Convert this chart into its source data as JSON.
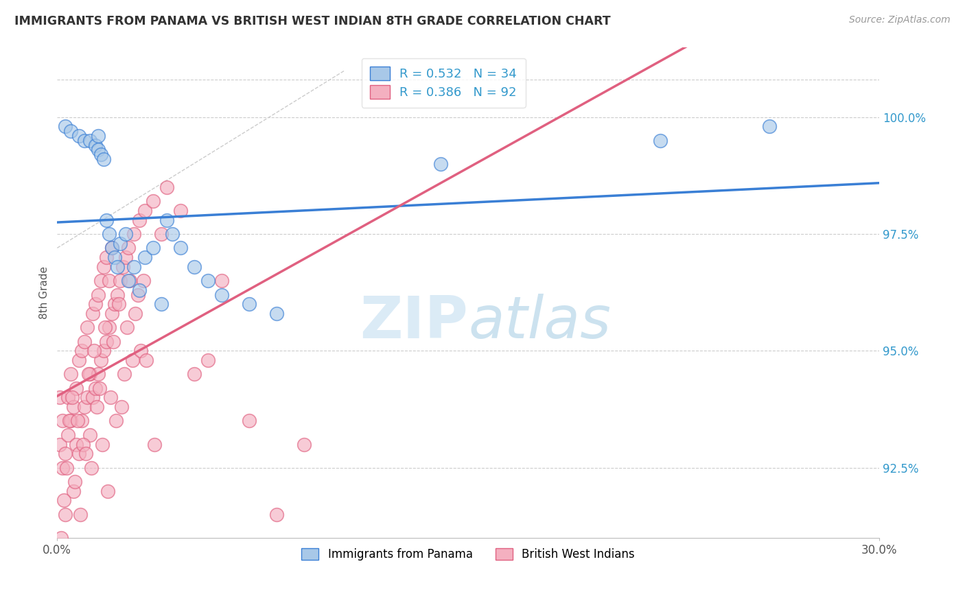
{
  "title": "IMMIGRANTS FROM PANAMA VS BRITISH WEST INDIAN 8TH GRADE CORRELATION CHART",
  "source": "Source: ZipAtlas.com",
  "ylabel_label": "8th Grade",
  "ylabel_ticks": [
    "100.0%",
    "97.5%",
    "95.0%",
    "92.5%"
  ],
  "xlim": [
    0.0,
    30.0
  ],
  "ylim": [
    91.0,
    101.5
  ],
  "ytick_positions": [
    100.0,
    97.5,
    95.0,
    92.5
  ],
  "legend1_label": "R = 0.532   N = 34",
  "legend2_label": "R = 0.386   N = 92",
  "legend_bottom_label1": "Immigrants from Panama",
  "legend_bottom_label2": "British West Indians",
  "color_blue": "#a8c8e8",
  "color_pink": "#f4b0c0",
  "color_blue_line": "#3a7fd5",
  "color_pink_line": "#e06080",
  "color_dashed": "#cccccc",
  "watermark_zip_color": "#c8dff0",
  "watermark_atlas_color": "#a0c8e8",
  "panama_x": [
    0.3,
    0.5,
    0.8,
    1.0,
    1.2,
    1.4,
    1.5,
    1.5,
    1.6,
    1.7,
    1.8,
    1.9,
    2.0,
    2.1,
    2.2,
    2.3,
    2.5,
    2.6,
    2.8,
    3.0,
    3.2,
    3.5,
    3.8,
    4.0,
    4.2,
    4.5,
    5.0,
    5.5,
    6.0,
    7.0,
    8.0,
    14.0,
    22.0,
    26.0
  ],
  "panama_y": [
    99.8,
    99.7,
    99.6,
    99.5,
    99.5,
    99.4,
    99.6,
    99.3,
    99.2,
    99.1,
    97.8,
    97.5,
    97.2,
    97.0,
    96.8,
    97.3,
    97.5,
    96.5,
    96.8,
    96.3,
    97.0,
    97.2,
    96.0,
    97.8,
    97.5,
    97.2,
    96.8,
    96.5,
    96.2,
    96.0,
    95.8,
    99.0,
    99.5,
    99.8
  ],
  "bwi_x": [
    0.1,
    0.1,
    0.2,
    0.2,
    0.3,
    0.3,
    0.4,
    0.4,
    0.5,
    0.5,
    0.6,
    0.6,
    0.7,
    0.7,
    0.8,
    0.8,
    0.9,
    0.9,
    1.0,
    1.0,
    1.1,
    1.1,
    1.2,
    1.2,
    1.3,
    1.3,
    1.4,
    1.4,
    1.5,
    1.5,
    1.6,
    1.6,
    1.7,
    1.7,
    1.8,
    1.8,
    1.9,
    1.9,
    2.0,
    2.0,
    2.1,
    2.2,
    2.3,
    2.4,
    2.5,
    2.6,
    2.8,
    3.0,
    3.2,
    3.5,
    3.8,
    4.0,
    4.5,
    5.0,
    5.5,
    6.0,
    7.0,
    8.0,
    9.0,
    0.15,
    0.25,
    0.35,
    0.45,
    0.55,
    0.65,
    0.75,
    0.85,
    0.95,
    1.05,
    1.15,
    1.25,
    1.35,
    1.45,
    1.55,
    1.65,
    1.75,
    1.85,
    1.95,
    2.05,
    2.15,
    2.25,
    2.35,
    2.45,
    2.55,
    2.65,
    2.75,
    2.85,
    2.95,
    3.05,
    3.15,
    3.25,
    3.55
  ],
  "bwi_y": [
    93.0,
    94.0,
    92.5,
    93.5,
    91.5,
    92.8,
    93.2,
    94.0,
    93.5,
    94.5,
    92.0,
    93.8,
    93.0,
    94.2,
    92.8,
    94.8,
    93.5,
    95.0,
    93.8,
    95.2,
    94.0,
    95.5,
    93.2,
    94.5,
    94.0,
    95.8,
    94.2,
    96.0,
    94.5,
    96.2,
    94.8,
    96.5,
    95.0,
    96.8,
    95.2,
    97.0,
    95.5,
    96.5,
    95.8,
    97.2,
    96.0,
    96.2,
    96.5,
    96.8,
    97.0,
    97.2,
    97.5,
    97.8,
    98.0,
    98.2,
    97.5,
    98.5,
    98.0,
    94.5,
    94.8,
    96.5,
    93.5,
    91.5,
    93.0,
    91.0,
    91.8,
    92.5,
    93.5,
    94.0,
    92.2,
    93.5,
    91.5,
    93.0,
    92.8,
    94.5,
    92.5,
    95.0,
    93.8,
    94.2,
    93.0,
    95.5,
    92.0,
    94.0,
    95.2,
    93.5,
    96.0,
    93.8,
    94.5,
    95.5,
    96.5,
    94.8,
    95.8,
    96.2,
    95.0,
    96.5,
    94.8,
    93.0
  ]
}
